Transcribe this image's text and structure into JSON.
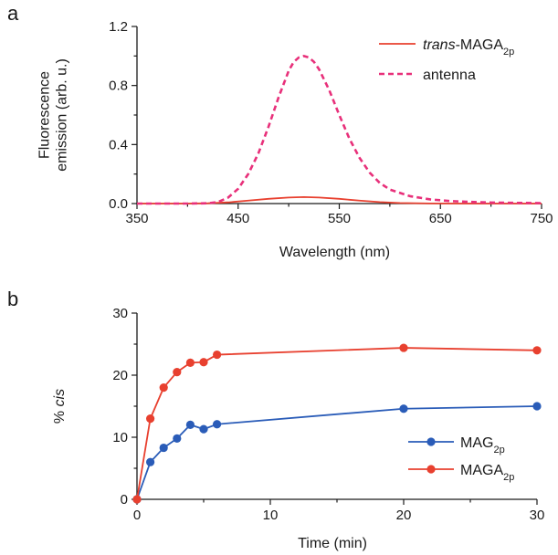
{
  "chart_data": [
    {
      "panel": "a",
      "type": "line",
      "xlabel": "Wavelength (nm)",
      "ylabel": "Fluorescence emission (arb. u.)",
      "ylabel_lines": [
        "Fluorescence",
        "emission (arb. u.)"
      ],
      "xlim": [
        350,
        750
      ],
      "ylim": [
        0,
        1.2
      ],
      "xticks": [
        350,
        450,
        550,
        650,
        750
      ],
      "xtick_labels": [
        "350",
        "450",
        "550",
        "650",
        "750"
      ],
      "yticks": [
        0,
        0.4,
        0.8,
        1.2
      ],
      "ytick_labels": [
        "0.0",
        "0.4",
        "0.8",
        "1.2"
      ],
      "legend_position": "top-right",
      "series": [
        {
          "name": "trans-MAGA2p",
          "legend_parts": [
            {
              "t": "trans",
              "style": "italic"
            },
            {
              "t": "-MAGA"
            },
            {
              "t": "2p",
              "style": "sub"
            }
          ],
          "color": "#e8402f",
          "dash": "solid",
          "x": [
            350,
            400,
            420,
            440,
            460,
            480,
            500,
            515,
            530,
            550,
            570,
            590,
            610,
            640,
            680,
            750
          ],
          "y": [
            0,
            0,
            0.002,
            0.008,
            0.02,
            0.032,
            0.041,
            0.044,
            0.041,
            0.032,
            0.02,
            0.01,
            0.004,
            0.001,
            0,
            0
          ]
        },
        {
          "name": "antenna",
          "legend_parts": [
            {
              "t": "antenna"
            }
          ],
          "color": "#e8307a",
          "dash": "dashed",
          "x": [
            350,
            400,
            420,
            430,
            440,
            450,
            460,
            470,
            480,
            490,
            500,
            505,
            510,
            515,
            520,
            525,
            530,
            540,
            550,
            560,
            570,
            580,
            590,
            600,
            620,
            640,
            660,
            680,
            700,
            720,
            750
          ],
          "y": [
            0,
            0,
            0.002,
            0.01,
            0.04,
            0.1,
            0.2,
            0.34,
            0.52,
            0.72,
            0.9,
            0.96,
            0.99,
            1.0,
            0.99,
            0.96,
            0.91,
            0.77,
            0.6,
            0.44,
            0.31,
            0.21,
            0.14,
            0.095,
            0.05,
            0.028,
            0.017,
            0.011,
            0.007,
            0.005,
            0.003
          ]
        }
      ]
    },
    {
      "panel": "b",
      "type": "line",
      "xlabel": "Time (min)",
      "ylabel": "% cis",
      "ylabel_parts": [
        {
          "t": "% "
        },
        {
          "t": "cis",
          "style": "italic"
        }
      ],
      "xlim": [
        0,
        30
      ],
      "ylim": [
        0,
        30
      ],
      "xticks": [
        0,
        10,
        20,
        30
      ],
      "xtick_labels": [
        "0",
        "10",
        "20",
        "30"
      ],
      "yticks": [
        0,
        10,
        20,
        30
      ],
      "ytick_labels": [
        "0",
        "10",
        "20",
        "30"
      ],
      "legend_position": "bottom-right",
      "series": [
        {
          "name": "MAG2p",
          "legend_parts": [
            {
              "t": "MAG"
            },
            {
              "t": "2p",
              "style": "sub"
            }
          ],
          "color": "#2a5cb8",
          "marker": "circle",
          "x": [
            0,
            1,
            2,
            3,
            4,
            5,
            6,
            20,
            30
          ],
          "y": [
            0,
            6.0,
            8.3,
            9.8,
            12.0,
            11.3,
            12.1,
            14.6,
            15.0
          ]
        },
        {
          "name": "MAGA2p",
          "legend_parts": [
            {
              "t": "MAGA"
            },
            {
              "t": "2p",
              "style": "sub"
            }
          ],
          "color": "#e8402f",
          "marker": "circle",
          "x": [
            0,
            1,
            2,
            3,
            4,
            5,
            6,
            20,
            30
          ],
          "y": [
            0,
            13.0,
            18.0,
            20.5,
            22.0,
            22.1,
            23.3,
            24.4,
            24.0
          ]
        }
      ]
    }
  ],
  "panel_labels": {
    "a": "a",
    "b": "b"
  }
}
